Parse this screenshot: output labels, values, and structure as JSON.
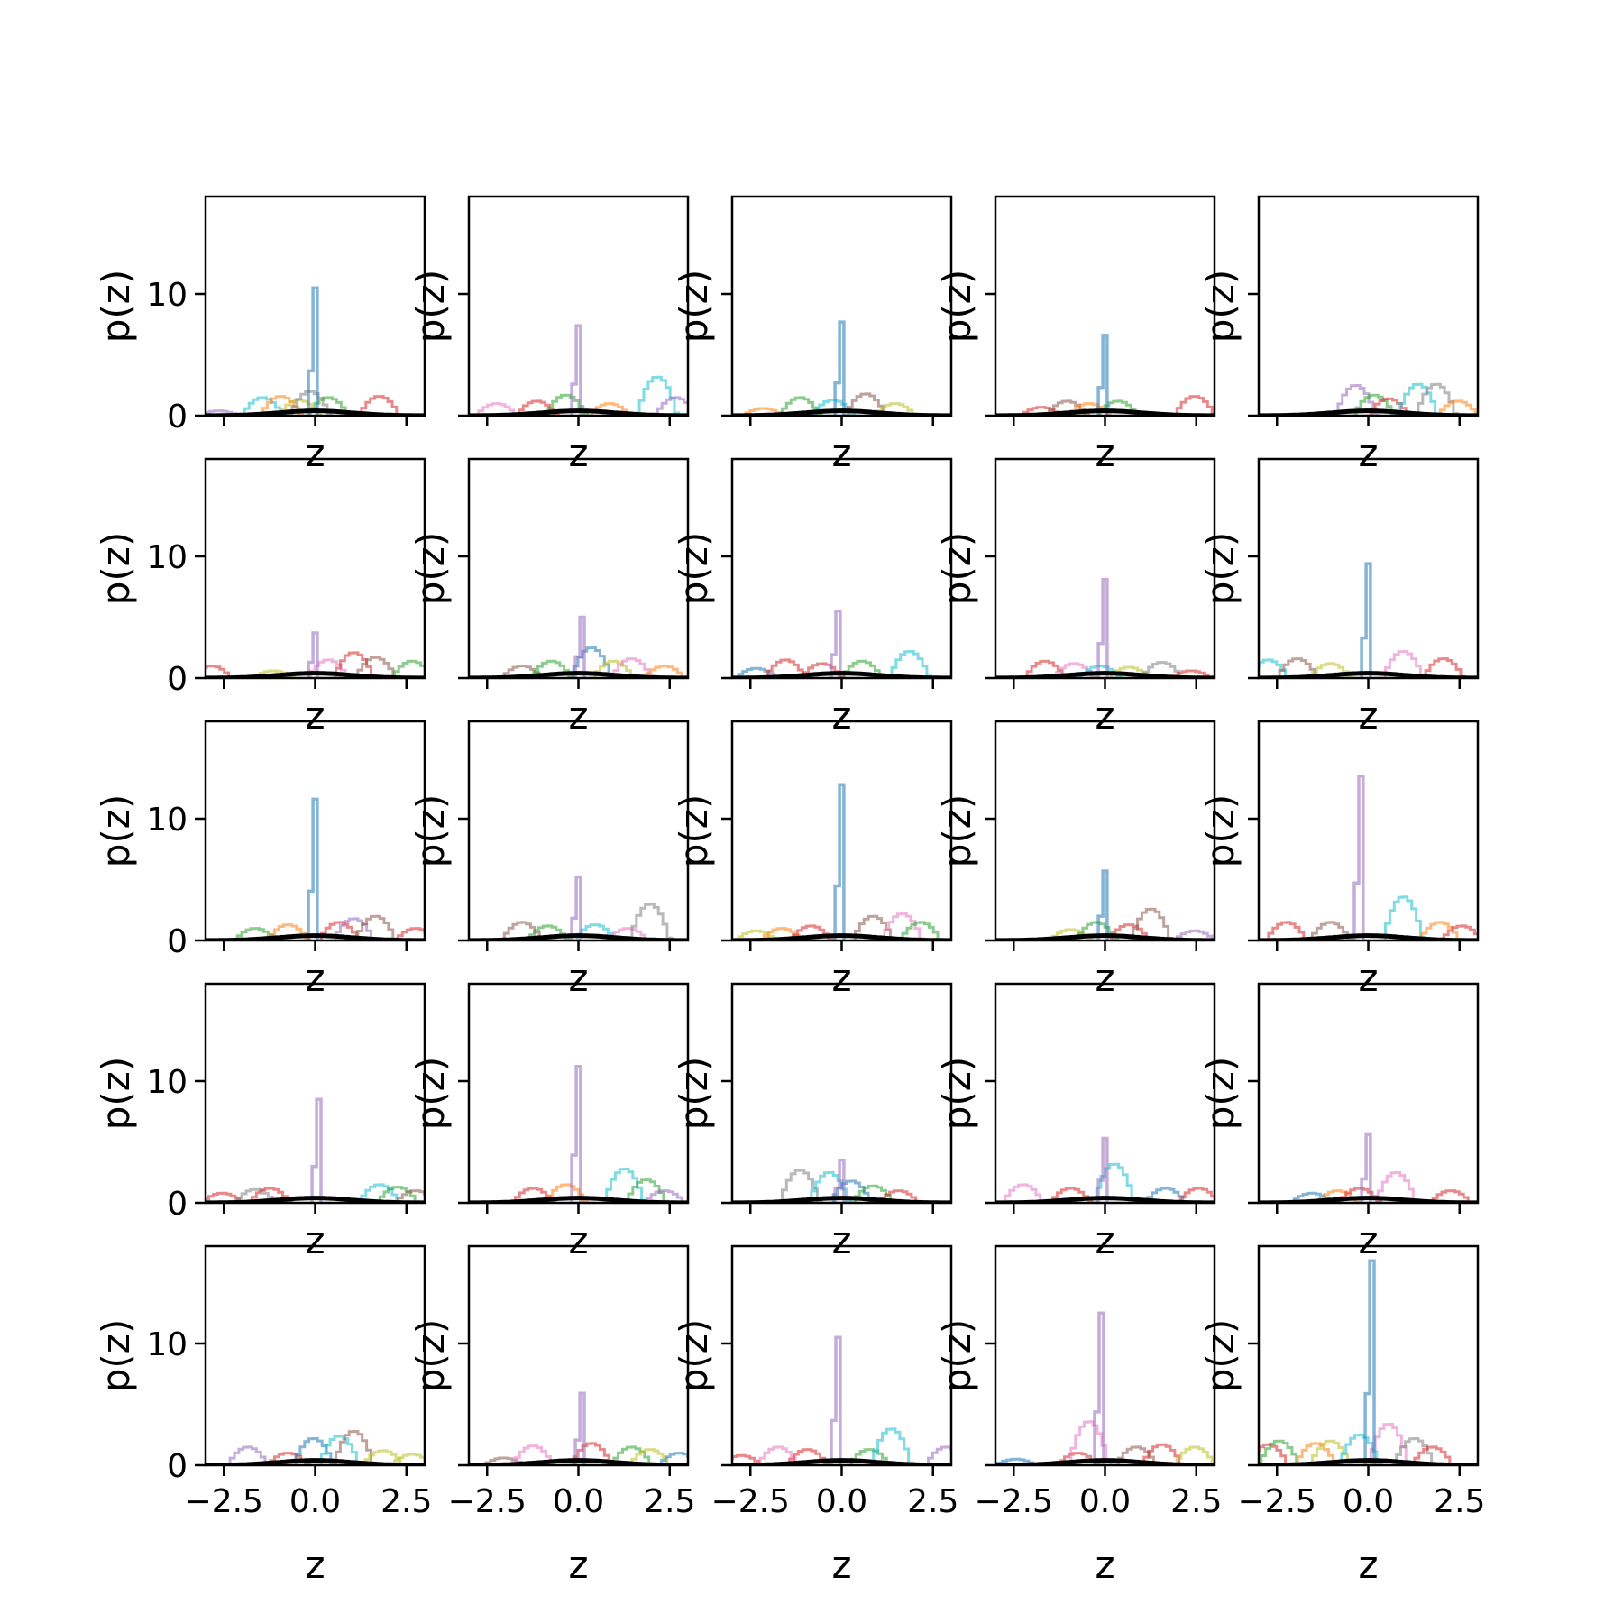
{
  "chart_data": {
    "type": "histogram-grid",
    "rows": 5,
    "cols": 5,
    "xlabel": "z",
    "ylabel": "p(z)",
    "xlim": [
      -3,
      3
    ],
    "ylim": [
      0,
      18
    ],
    "xticks": [
      -2.5,
      0.0,
      2.5
    ],
    "xtick_labels": [
      "−2.5",
      "0.0",
      "2.5"
    ],
    "yticks": [
      0,
      10
    ],
    "ytick_labels": [
      "0",
      "10"
    ],
    "reference_curve": {
      "type": "standard-normal-pdf",
      "color": "#000000"
    },
    "series_colors": [
      "#1f77b4",
      "#ff7f0e",
      "#2ca02c",
      "#d62728",
      "#9467bd",
      "#8c564b",
      "#e377c2",
      "#7f7f7f",
      "#bcbd22",
      "#17becf"
    ],
    "panels": [
      {
        "spike": {
          "x": 0.0,
          "h": 10.5,
          "color": "#1f77b4"
        },
        "bumps": [
          {
            "x": -2.7,
            "h": 0.4,
            "c": 4
          },
          {
            "x": -1.5,
            "h": 1.5,
            "c": 9
          },
          {
            "x": -1.0,
            "h": 1.6,
            "c": 1
          },
          {
            "x": -0.5,
            "h": 1.3,
            "c": 8
          },
          {
            "x": -0.2,
            "h": 2.0,
            "c": 7
          },
          {
            "x": 0.3,
            "h": 1.5,
            "c": 2
          },
          {
            "x": 1.7,
            "h": 1.6,
            "c": 3
          }
        ]
      },
      {
        "spike": {
          "x": 0.0,
          "h": 7.4,
          "color": "#9467bd"
        },
        "bumps": [
          {
            "x": -2.3,
            "h": 1.0,
            "c": 6
          },
          {
            "x": -1.2,
            "h": 1.2,
            "c": 3
          },
          {
            "x": -0.4,
            "h": 1.7,
            "c": 2
          },
          {
            "x": 0.8,
            "h": 1.0,
            "c": 1
          },
          {
            "x": 2.1,
            "h": 3.2,
            "c": 9
          },
          {
            "x": 2.6,
            "h": 1.5,
            "c": 4
          }
        ]
      },
      {
        "spike": {
          "x": 0.0,
          "h": 7.7,
          "color": "#1f77b4"
        },
        "bumps": [
          {
            "x": -2.2,
            "h": 0.6,
            "c": 1
          },
          {
            "x": -1.2,
            "h": 1.5,
            "c": 2
          },
          {
            "x": -0.3,
            "h": 1.3,
            "c": 9
          },
          {
            "x": 0.6,
            "h": 1.8,
            "c": 5
          },
          {
            "x": 1.4,
            "h": 1.0,
            "c": 8
          }
        ]
      },
      {
        "spike": {
          "x": 0.0,
          "h": 6.6,
          "color": "#1f77b4"
        },
        "bumps": [
          {
            "x": -1.8,
            "h": 0.7,
            "c": 3
          },
          {
            "x": -1.1,
            "h": 1.2,
            "c": 5
          },
          {
            "x": -0.5,
            "h": 1.0,
            "c": 1
          },
          {
            "x": 0.3,
            "h": 1.2,
            "c": 2
          },
          {
            "x": 2.4,
            "h": 1.6,
            "c": 3
          }
        ]
      },
      {
        "spike": null,
        "bumps": [
          {
            "x": -0.4,
            "h": 2.5,
            "c": 4
          },
          {
            "x": 0.1,
            "h": 1.7,
            "c": 2
          },
          {
            "x": 0.5,
            "h": 1.4,
            "c": 3
          },
          {
            "x": 1.3,
            "h": 2.6,
            "c": 9
          },
          {
            "x": 1.8,
            "h": 2.6,
            "c": 7
          },
          {
            "x": 2.4,
            "h": 1.2,
            "c": 1
          }
        ]
      },
      {
        "spike": {
          "x": 0.0,
          "h": 3.7,
          "color": "#9467bd"
        },
        "bumps": [
          {
            "x": -2.9,
            "h": 1.0,
            "c": 3
          },
          {
            "x": -1.2,
            "h": 0.6,
            "c": 8
          },
          {
            "x": 0.3,
            "h": 1.5,
            "c": 6
          },
          {
            "x": 1.0,
            "h": 2.1,
            "c": 3
          },
          {
            "x": 1.6,
            "h": 1.7,
            "c": 5
          },
          {
            "x": 2.6,
            "h": 1.4,
            "c": 2
          }
        ]
      },
      {
        "spike": {
          "x": 0.1,
          "h": 5.0,
          "color": "#9467bd"
        },
        "bumps": [
          {
            "x": -1.6,
            "h": 1.0,
            "c": 5
          },
          {
            "x": -0.8,
            "h": 1.4,
            "c": 2
          },
          {
            "x": 0.3,
            "h": 2.5,
            "c": 0
          },
          {
            "x": 0.9,
            "h": 1.4,
            "c": 8
          },
          {
            "x": 1.4,
            "h": 1.6,
            "c": 6
          },
          {
            "x": 2.3,
            "h": 1.0,
            "c": 1
          }
        ]
      },
      {
        "spike": {
          "x": -0.1,
          "h": 5.5,
          "color": "#9467bd"
        },
        "bumps": [
          {
            "x": -2.4,
            "h": 0.8,
            "c": 0
          },
          {
            "x": -1.6,
            "h": 1.5,
            "c": 3
          },
          {
            "x": -0.6,
            "h": 1.2,
            "c": 3
          },
          {
            "x": 0.5,
            "h": 1.4,
            "c": 2
          },
          {
            "x": 1.8,
            "h": 2.2,
            "c": 9
          }
        ]
      },
      {
        "spike": {
          "x": 0.0,
          "h": 8.1,
          "color": "#9467bd"
        },
        "bumps": [
          {
            "x": -1.7,
            "h": 1.4,
            "c": 3
          },
          {
            "x": -0.9,
            "h": 1.2,
            "c": 6
          },
          {
            "x": -0.2,
            "h": 1.0,
            "c": 9
          },
          {
            "x": 0.6,
            "h": 0.9,
            "c": 8
          },
          {
            "x": 1.5,
            "h": 1.3,
            "c": 7
          },
          {
            "x": 2.3,
            "h": 0.6,
            "c": 3
          }
        ]
      },
      {
        "spike": {
          "x": 0.0,
          "h": 9.4,
          "color": "#1f77b4"
        },
        "bumps": [
          {
            "x": -2.8,
            "h": 1.5,
            "c": 9
          },
          {
            "x": -2.0,
            "h": 1.6,
            "c": 5
          },
          {
            "x": -1.1,
            "h": 1.2,
            "c": 8
          },
          {
            "x": 0.9,
            "h": 2.2,
            "c": 6
          },
          {
            "x": 2.0,
            "h": 1.6,
            "c": 3
          }
        ]
      },
      {
        "spike": {
          "x": 0.0,
          "h": 11.6,
          "color": "#1f77b4"
        },
        "bumps": [
          {
            "x": -1.7,
            "h": 1.0,
            "c": 2
          },
          {
            "x": -0.8,
            "h": 1.3,
            "c": 1
          },
          {
            "x": 0.6,
            "h": 1.5,
            "c": 3
          },
          {
            "x": 1.0,
            "h": 1.8,
            "c": 4
          },
          {
            "x": 1.6,
            "h": 2.0,
            "c": 5
          },
          {
            "x": 2.7,
            "h": 1.0,
            "c": 3
          }
        ]
      },
      {
        "spike": {
          "x": 0.0,
          "h": 5.2,
          "color": "#9467bd"
        },
        "bumps": [
          {
            "x": -1.6,
            "h": 1.5,
            "c": 5
          },
          {
            "x": -0.9,
            "h": 1.2,
            "c": 2
          },
          {
            "x": 0.4,
            "h": 1.3,
            "c": 9
          },
          {
            "x": 1.3,
            "h": 1.0,
            "c": 6
          },
          {
            "x": 1.9,
            "h": 3.0,
            "c": 7
          }
        ]
      },
      {
        "spike": {
          "x": 0.0,
          "h": 12.8,
          "color": "#1f77b4"
        },
        "bumps": [
          {
            "x": -2.4,
            "h": 0.8,
            "c": 8
          },
          {
            "x": -1.7,
            "h": 1.0,
            "c": 1
          },
          {
            "x": -0.9,
            "h": 1.2,
            "c": 3
          },
          {
            "x": 0.8,
            "h": 2.0,
            "c": 5
          },
          {
            "x": 1.6,
            "h": 2.2,
            "c": 6
          },
          {
            "x": 2.1,
            "h": 1.5,
            "c": 2
          }
        ]
      },
      {
        "spike": {
          "x": 0.0,
          "h": 5.7,
          "color": "#1f77b4"
        },
        "bumps": [
          {
            "x": -1.0,
            "h": 0.9,
            "c": 8
          },
          {
            "x": -0.3,
            "h": 1.5,
            "c": 2
          },
          {
            "x": 0.6,
            "h": 1.3,
            "c": 3
          },
          {
            "x": 1.2,
            "h": 2.6,
            "c": 5
          },
          {
            "x": 2.4,
            "h": 0.8,
            "c": 4
          }
        ]
      },
      {
        "spike": {
          "x": -0.2,
          "h": 13.5,
          "color": "#9467bd"
        },
        "bumps": [
          {
            "x": -2.3,
            "h": 1.5,
            "c": 3
          },
          {
            "x": -1.1,
            "h": 1.5,
            "c": 5
          },
          {
            "x": 0.9,
            "h": 3.6,
            "c": 9
          },
          {
            "x": 1.9,
            "h": 1.5,
            "c": 1
          },
          {
            "x": 2.5,
            "h": 1.2,
            "c": 3
          }
        ]
      },
      {
        "spike": {
          "x": 0.1,
          "h": 8.5,
          "color": "#9467bd"
        },
        "bumps": [
          {
            "x": -2.6,
            "h": 0.8,
            "c": 3
          },
          {
            "x": -1.7,
            "h": 1.1,
            "c": 7
          },
          {
            "x": -1.3,
            "h": 1.2,
            "c": 3
          },
          {
            "x": 1.7,
            "h": 1.5,
            "c": 9
          },
          {
            "x": 2.2,
            "h": 1.3,
            "c": 2
          },
          {
            "x": 2.7,
            "h": 1.0,
            "c": 5
          }
        ]
      },
      {
        "spike": {
          "x": 0.0,
          "h": 11.2,
          "color": "#9467bd"
        },
        "bumps": [
          {
            "x": -1.3,
            "h": 1.2,
            "c": 3
          },
          {
            "x": -0.4,
            "h": 1.5,
            "c": 1
          },
          {
            "x": 1.2,
            "h": 2.8,
            "c": 9
          },
          {
            "x": 1.8,
            "h": 1.9,
            "c": 2
          },
          {
            "x": 2.3,
            "h": 1.0,
            "c": 4
          }
        ]
      },
      {
        "spike": {
          "x": 0.0,
          "h": 3.5,
          "color": "#9467bd"
        },
        "bumps": [
          {
            "x": -1.2,
            "h": 2.7,
            "c": 7
          },
          {
            "x": -0.4,
            "h": 2.5,
            "c": 9
          },
          {
            "x": 0.2,
            "h": 1.8,
            "c": 0
          },
          {
            "x": 0.8,
            "h": 1.4,
            "c": 2
          },
          {
            "x": 1.5,
            "h": 1.0,
            "c": 3
          }
        ]
      },
      {
        "spike": {
          "x": 0.0,
          "h": 5.3,
          "color": "#9467bd"
        },
        "bumps": [
          {
            "x": -2.3,
            "h": 1.5,
            "c": 6
          },
          {
            "x": -1.0,
            "h": 1.2,
            "c": 3
          },
          {
            "x": 0.2,
            "h": 3.2,
            "c": 9
          },
          {
            "x": 1.6,
            "h": 1.2,
            "c": 0
          },
          {
            "x": 2.5,
            "h": 1.2,
            "c": 3
          }
        ]
      },
      {
        "spike": {
          "x": 0.0,
          "h": 5.6,
          "color": "#9467bd"
        },
        "bumps": [
          {
            "x": -1.6,
            "h": 0.8,
            "c": 0
          },
          {
            "x": -0.9,
            "h": 1.0,
            "c": 1
          },
          {
            "x": -0.3,
            "h": 1.2,
            "c": 3
          },
          {
            "x": 0.7,
            "h": 2.5,
            "c": 6
          },
          {
            "x": 2.2,
            "h": 1.0,
            "c": 3
          }
        ]
      },
      {
        "spike": null,
        "bumps": [
          {
            "x": -1.9,
            "h": 1.5,
            "c": 4
          },
          {
            "x": -0.8,
            "h": 1.0,
            "c": 3
          },
          {
            "x": -0.1,
            "h": 2.2,
            "c": 0
          },
          {
            "x": 0.6,
            "h": 2.4,
            "c": 9
          },
          {
            "x": 1.0,
            "h": 2.8,
            "c": 5
          },
          {
            "x": 1.8,
            "h": 1.2,
            "c": 8
          },
          {
            "x": 2.6,
            "h": 0.9,
            "c": 8
          }
        ]
      },
      {
        "spike": {
          "x": 0.1,
          "h": 5.9,
          "color": "#9467bd"
        },
        "bumps": [
          {
            "x": -2.1,
            "h": 0.6,
            "c": 5
          },
          {
            "x": -1.3,
            "h": 1.6,
            "c": 6
          },
          {
            "x": 0.3,
            "h": 1.8,
            "c": 3
          },
          {
            "x": 1.4,
            "h": 1.5,
            "c": 2
          },
          {
            "x": 1.9,
            "h": 1.3,
            "c": 8
          },
          {
            "x": 2.7,
            "h": 1.0,
            "c": 0
          }
        ]
      },
      {
        "spike": {
          "x": -0.1,
          "h": 10.5,
          "color": "#9467bd"
        },
        "bumps": [
          {
            "x": -2.8,
            "h": 0.8,
            "c": 3
          },
          {
            "x": -1.8,
            "h": 1.5,
            "c": 6
          },
          {
            "x": -1.0,
            "h": 1.3,
            "c": 3
          },
          {
            "x": 0.7,
            "h": 1.3,
            "c": 2
          },
          {
            "x": 1.3,
            "h": 3.0,
            "c": 9
          },
          {
            "x": 2.8,
            "h": 1.5,
            "c": 4
          }
        ]
      },
      {
        "spike": {
          "x": -0.1,
          "h": 12.5,
          "color": "#9467bd"
        },
        "bumps": [
          {
            "x": -2.5,
            "h": 0.5,
            "c": 0
          },
          {
            "x": -0.8,
            "h": 1.0,
            "c": 3
          },
          {
            "x": -0.5,
            "h": 3.6,
            "c": 6
          },
          {
            "x": 0.8,
            "h": 1.5,
            "c": 5
          },
          {
            "x": 1.5,
            "h": 1.7,
            "c": 3
          },
          {
            "x": 2.4,
            "h": 1.5,
            "c": 8
          }
        ]
      },
      {
        "spike": {
          "x": 0.1,
          "h": 16.8,
          "color": "#1f77b4"
        },
        "bumps": [
          {
            "x": -2.8,
            "h": 1.7,
            "c": 3
          },
          {
            "x": -2.5,
            "h": 2.0,
            "c": 2
          },
          {
            "x": -1.5,
            "h": 1.8,
            "c": 1
          },
          {
            "x": -1.1,
            "h": 2.0,
            "c": 8
          },
          {
            "x": -0.3,
            "h": 2.5,
            "c": 9
          },
          {
            "x": 0.5,
            "h": 3.4,
            "c": 6
          },
          {
            "x": 1.2,
            "h": 2.2,
            "c": 7
          },
          {
            "x": 1.7,
            "h": 1.5,
            "c": 3
          }
        ]
      }
    ]
  }
}
